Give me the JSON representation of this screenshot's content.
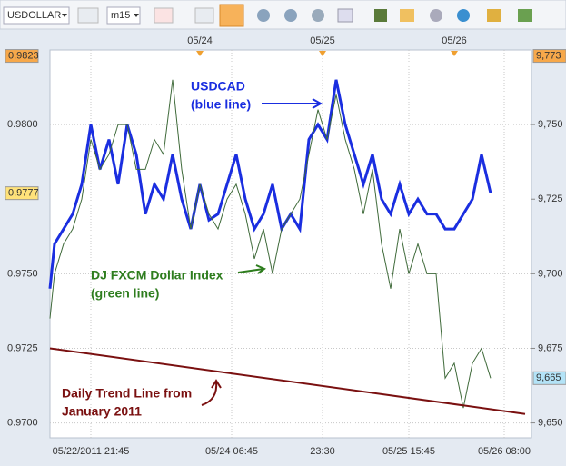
{
  "toolbar": {
    "symbol": "USDOLLAR",
    "timeframe": "m15"
  },
  "chart_data": {
    "type": "line",
    "xlim": [
      0,
      106
    ],
    "xticks": [
      {
        "value": 9,
        "label": "05/22/2011 21:45"
      },
      {
        "value": 40,
        "label": "05/24 06:45"
      },
      {
        "value": 60,
        "label": "23:30"
      },
      {
        "value": 79,
        "label": "05/25 15:45"
      },
      {
        "value": 100,
        "label": "05/26 08:00"
      }
    ],
    "x2ticks": [
      {
        "value": 33,
        "label": "05/24"
      },
      {
        "value": 60,
        "label": "05/25"
      },
      {
        "value": 89,
        "label": "05/26"
      }
    ],
    "ylim": [
      0.9695,
      0.9825
    ],
    "yticks": [
      {
        "value": 0.97,
        "label": "0.9700"
      },
      {
        "value": 0.9725,
        "label": "0.9725"
      },
      {
        "value": 0.975,
        "label": "0.9750"
      },
      {
        "value": 0.98,
        "label": "0.9800"
      }
    ],
    "y2lim": [
      9645,
      9775
    ],
    "y2ticks": [
      {
        "value": 9650,
        "label": "9,650"
      },
      {
        "value": 9675,
        "label": "9,675"
      },
      {
        "value": 9700,
        "label": "9,700"
      },
      {
        "value": 9725,
        "label": "9,725"
      },
      {
        "value": 9750,
        "label": "9,750"
      }
    ],
    "grid": true,
    "y_markers": [
      {
        "value": 0.9823,
        "label": "0.9823",
        "color": "#f7a84a"
      },
      {
        "value": 0.9777,
        "label": "0.9777",
        "color": "#ffe27a"
      }
    ],
    "y2_markers": [
      {
        "value": 9773,
        "label": "9,773",
        "color": "#f7a84a"
      },
      {
        "value": 9665,
        "label": "9,665",
        "color": "#b3e3f7"
      }
    ],
    "x": [
      0,
      1,
      3,
      5,
      7,
      9,
      11,
      13,
      15,
      17,
      19,
      21,
      23,
      25,
      27,
      29,
      31,
      33,
      35,
      37,
      39,
      41,
      43,
      45,
      47,
      49,
      51,
      53,
      55,
      57,
      59,
      61,
      63,
      65,
      67,
      69,
      71,
      73,
      75,
      77,
      79,
      81,
      83,
      85,
      87,
      89,
      91,
      93,
      95,
      97
    ],
    "series": [
      {
        "color": "#1a2ee0",
        "values": [
          0.9745,
          0.976,
          0.9765,
          0.977,
          0.978,
          0.98,
          0.9785,
          0.9795,
          0.978,
          0.98,
          0.979,
          0.977,
          0.978,
          0.9775,
          0.979,
          0.9775,
          0.9765,
          0.978,
          0.9768,
          0.977,
          0.978,
          0.979,
          0.9775,
          0.9765,
          0.977,
          0.978,
          0.9765,
          0.977,
          0.9765,
          0.9795,
          0.98,
          0.9795,
          0.9815,
          0.98,
          0.979,
          0.978,
          0.979,
          0.9775,
          0.977,
          0.978,
          0.977,
          0.9775,
          0.977,
          0.977,
          0.9765,
          0.9765,
          0.977,
          0.9775,
          0.979,
          0.9777
        ]
      },
      {
        "color": "#3f6a3a",
        "axis": "y2",
        "values": [
          9685,
          9700,
          9710,
          9715,
          9725,
          9745,
          9735,
          9740,
          9750,
          9750,
          9735,
          9735,
          9745,
          9740,
          9765,
          9735,
          9715,
          9730,
          9720,
          9715,
          9725,
          9730,
          9720,
          9705,
          9715,
          9700,
          9715,
          9720,
          9725,
          9740,
          9755,
          9745,
          9760,
          9745,
          9735,
          9720,
          9735,
          9710,
          9695,
          9715,
          9700,
          9710,
          9700,
          9700,
          9665,
          9670,
          9655,
          9670,
          9675,
          9665
        ]
      }
    ],
    "trend_line": {
      "x": [
        0,
        104.6
      ],
      "values": [
        0.9725,
        0.9703
      ],
      "color": "#7a1010"
    },
    "annotations": [
      {
        "text": "USDCAD",
        "color": "#1a2ee0"
      },
      {
        "text": "(blue line)",
        "color": "#1a2ee0"
      },
      {
        "text": "DJ FXCM Dollar Index",
        "color": "#2e7d1e"
      },
      {
        "text": "(green line)",
        "color": "#2e7d1e"
      },
      {
        "text": "Daily Trend Line from",
        "color": "#7a1010"
      },
      {
        "text": "January 2011",
        "color": "#7a1010"
      }
    ]
  }
}
